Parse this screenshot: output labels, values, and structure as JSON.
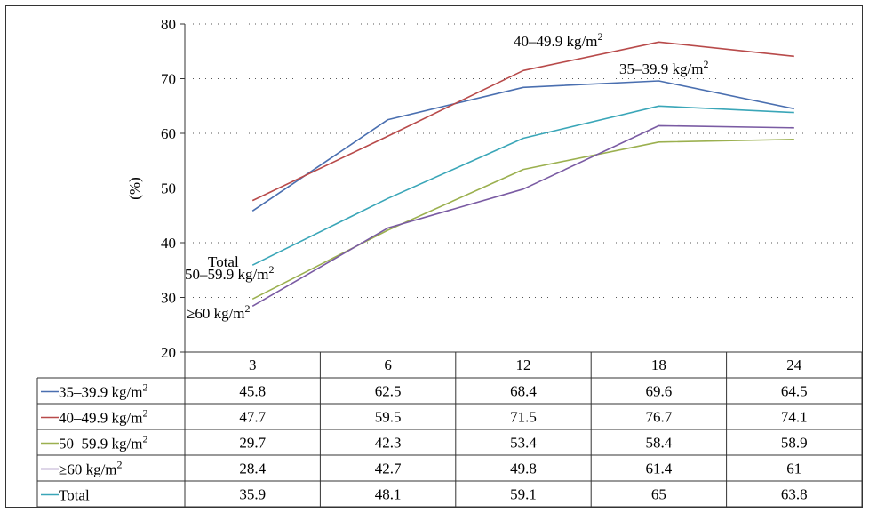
{
  "chart_data": {
    "type": "line",
    "title": "",
    "xlabel": "",
    "ylabel": "(%)",
    "ylim": [
      20,
      80
    ],
    "yticks": [
      "20",
      "30",
      "40",
      "50",
      "60",
      "70",
      "80"
    ],
    "grid": "horizontal-dotted",
    "legend": "table-below",
    "categories": [
      "3",
      "6",
      "12",
      "18",
      "24"
    ],
    "series": [
      {
        "name": "35–39.9 kg/m",
        "sup": "2",
        "color": "#4a6fb0",
        "values": [
          45.8,
          62.5,
          68.4,
          69.6,
          64.5
        ],
        "cells": [
          "45.8",
          "62.5",
          "68.4",
          "69.6",
          "64.5"
        ],
        "annotation": "35–39.9 kg/m"
      },
      {
        "name": "40–49.9 kg/m",
        "sup": "2",
        "color": "#b84a4a",
        "values": [
          47.7,
          59.5,
          71.5,
          76.7,
          74.1
        ],
        "cells": [
          "47.7",
          "59.5",
          "71.5",
          "76.7",
          "74.1"
        ],
        "annotation": "40–49.9 kg/m"
      },
      {
        "name": "50–59.9 kg/m",
        "sup": "2",
        "color": "#9bb04f",
        "values": [
          29.7,
          42.3,
          53.4,
          58.4,
          58.9
        ],
        "cells": [
          "29.7",
          "42.3",
          "53.4",
          "58.4",
          "58.9"
        ],
        "annotation": "50–59.9 kg/m"
      },
      {
        "name": "≥60 kg/m",
        "sup": "2",
        "color": "#7a5ba3",
        "values": [
          28.4,
          42.7,
          49.8,
          61.4,
          61
        ],
        "cells": [
          "28.4",
          "42.7",
          "49.8",
          "61.4",
          "61"
        ],
        "annotation": "≥60 kg/m"
      },
      {
        "name": "Total",
        "sup": "",
        "color": "#3aa6b8",
        "values": [
          35.9,
          48.1,
          59.1,
          65,
          63.8
        ],
        "cells": [
          "35.9",
          "48.1",
          "59.1",
          "65",
          "63.8"
        ],
        "annotation": "Total"
      }
    ]
  }
}
